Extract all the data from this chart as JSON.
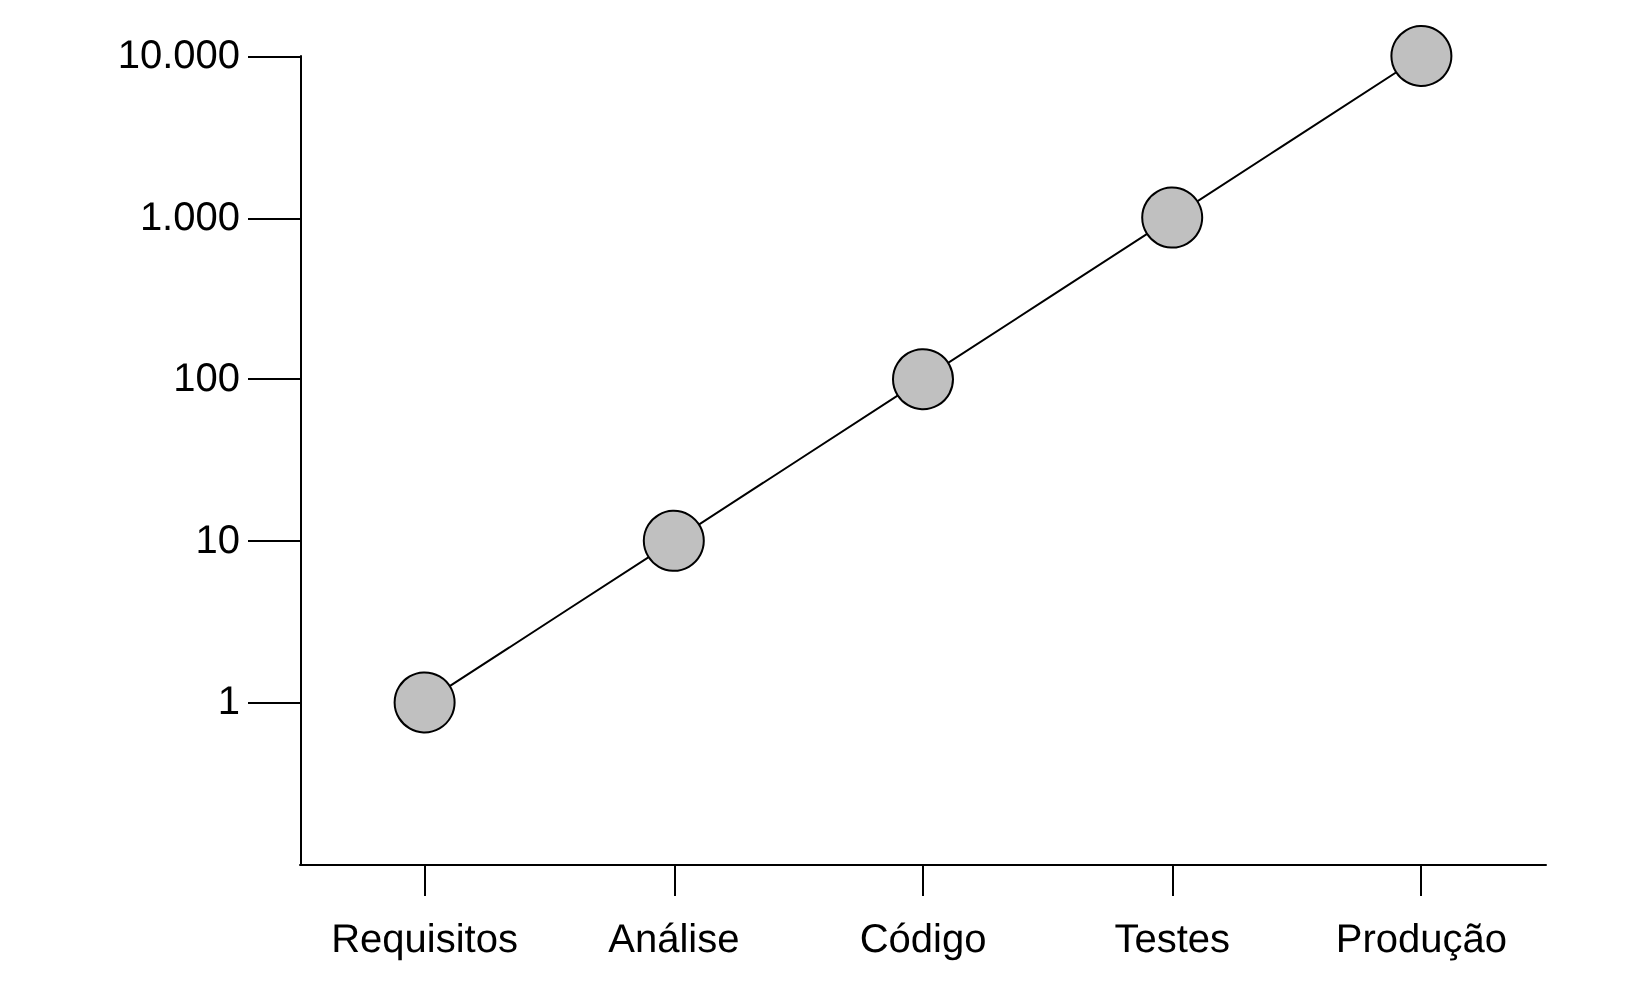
{
  "chart_data": {
    "type": "line",
    "categories": [
      "Requisitos",
      "Análise",
      "Código",
      "Testes",
      "Produção"
    ],
    "series": [
      {
        "color": "#c0c0c0",
        "values": [
          1,
          10,
          100,
          1000,
          10000
        ]
      }
    ],
    "log": true,
    "ylim": [
      0.1,
      10000
    ],
    "yticks": [
      1,
      10,
      {
        "value": 100,
        "label": "100"
      },
      {
        "value": 1000,
        "label": "1.000"
      },
      {
        "value": 10000,
        "label": "10.000"
      }
    ],
    "grid": false,
    "marker": "circle",
    "line_style": "solid"
  }
}
